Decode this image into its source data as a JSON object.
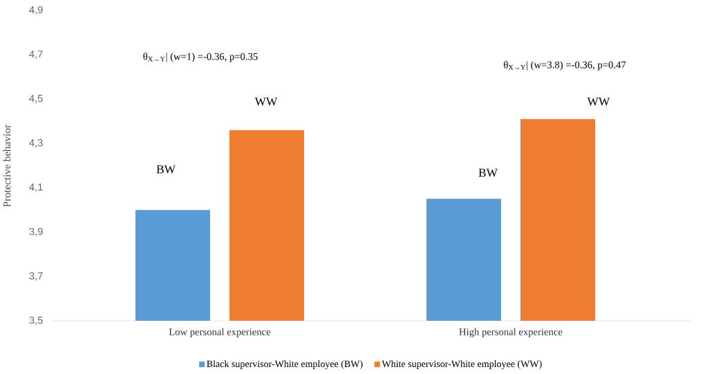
{
  "chart_data": {
    "type": "bar",
    "ylabel": "Protective behavior",
    "categories": [
      "Low personal experience",
      "High personal experience"
    ],
    "series": [
      {
        "name": "Black supervisor-White employee (BW)",
        "color": "#5b9bd5",
        "values": [
          4.0,
          4.05
        ]
      },
      {
        "name": "White supervisor-White employee (WW)",
        "color": "#ed7d31",
        "values": [
          4.36,
          4.41
        ]
      }
    ],
    "ylim": [
      3.5,
      4.9
    ],
    "yticks": [
      {
        "value": 3.5,
        "label": "3,5"
      },
      {
        "value": 3.7,
        "label": "3,7"
      },
      {
        "value": 3.9,
        "label": "3,9"
      },
      {
        "value": 4.1,
        "label": "4,1"
      },
      {
        "value": 4.3,
        "label": "4,3"
      },
      {
        "value": 4.5,
        "label": "4,5"
      },
      {
        "value": 4.7,
        "label": "4,7"
      },
      {
        "value": 4.9,
        "label": "4,9"
      }
    ],
    "annotations": [
      "θ$_{X→Y}$| (w=1) =-0.36, p=0.35",
      "θ$_{X→Y}$| (w=3.8) =-0.36, p=0.47",
      "BW",
      "WW",
      "BW",
      "WW"
    ],
    "grid": false,
    "legend": "bottom"
  }
}
